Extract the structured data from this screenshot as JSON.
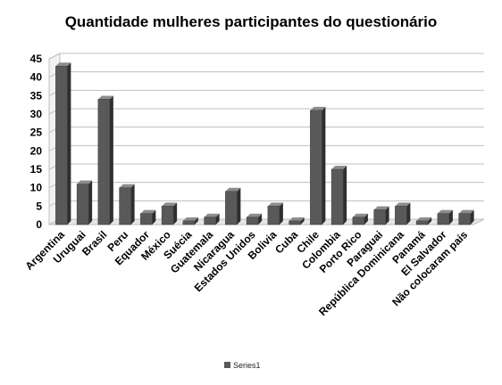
{
  "chart_data": {
    "type": "bar",
    "title": "Quantidade mulheres participantes do questionário",
    "categories": [
      "Argentina",
      "Uruguai",
      "Brasil",
      "Peru",
      "Equador",
      "México",
      "Suécia",
      "Guatemala",
      "Nicaragua",
      "Estados Unidos",
      "Bolivia",
      "Cuba",
      "Chile",
      "Colombia",
      "Porto Rico",
      "Paraguai",
      "República Dominicana",
      "Panamá",
      "El Salvador",
      "Não colocaram país"
    ],
    "series": [
      {
        "name": "Series1",
        "values": [
          43,
          11,
          34,
          10,
          3,
          5,
          1,
          2,
          9,
          2,
          5,
          1,
          31,
          15,
          2,
          4,
          5,
          1,
          3,
          3
        ]
      }
    ],
    "ylim": [
      0,
      45
    ],
    "yticks": [
      "0",
      "5",
      "10",
      "15",
      "20",
      "25",
      "30",
      "35",
      "40",
      "45"
    ],
    "grid": true,
    "legend_position": "bottom",
    "bar_color": "#595959"
  }
}
